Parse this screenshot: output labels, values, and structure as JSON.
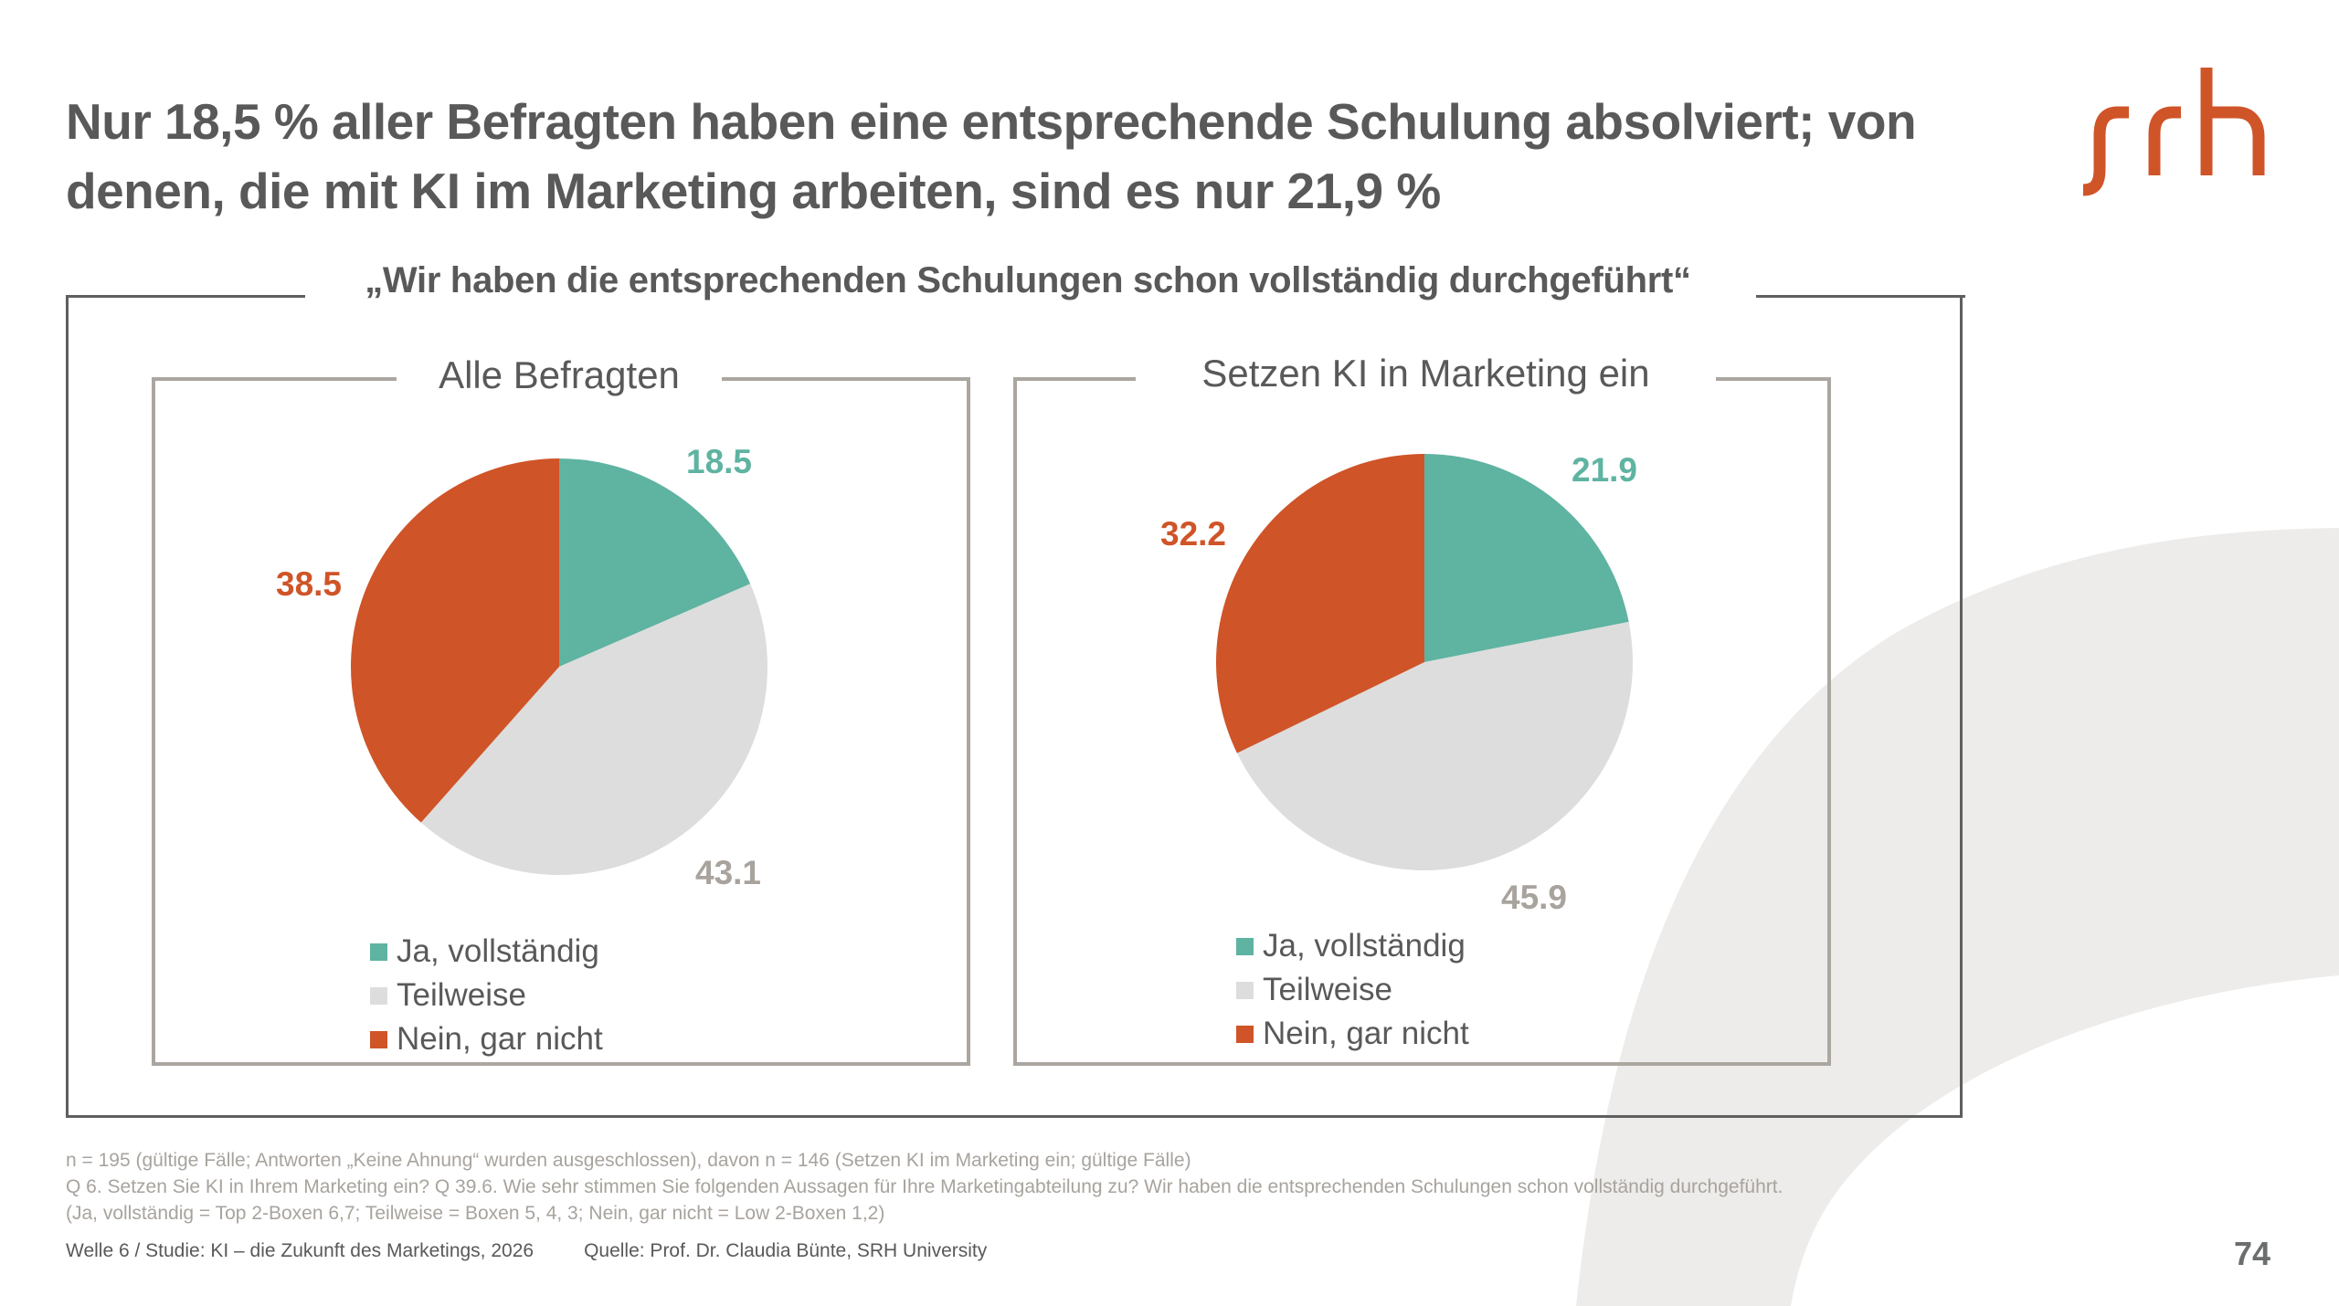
{
  "slide": {
    "title_lines": [
      "Nur 18,5 % aller Befragten haben eine entsprechende Schulung absolviert; von",
      "denen, die mit KI im Marketing arbeiten, sind es nur 21,9 %"
    ],
    "logo_text": "srh",
    "question_quote": "„Wir haben die entsprechenden Schulungen schon vollständig durchgeführt“",
    "footnotes": [
      "n = 195 (gültige Fälle; Antworten „Keine Ahnung“ wurden ausgeschlossen), davon n = 146 (Setzen KI im Marketing ein; gültige Fälle)",
      "Q 6. Setzen Sie KI in Ihrem Marketing ein? Q 39.6. Wie sehr stimmen Sie folgenden Aussagen für Ihre Marketingabteilung zu? Wir haben die entsprechenden Schulungen schon vollständig durchgeführt.",
      "(Ja, vollständig = Top 2-Boxen 6,7; Teilweise = Boxen 5, 4, 3; Nein, gar nicht = Low 2-Boxen 1,2)"
    ],
    "footer_study": "Welle 6 / Studie: KI – die Zukunft des Marketings, 2026",
    "footer_source": "Quelle: Prof. Dr. Claudia Bünte, SRH University",
    "page_number": "74"
  },
  "colors": {
    "ja": "#5fb3a1",
    "teilweise": "#dddddd",
    "nein": "#cf5428",
    "ja_label": "#5fb3a1",
    "teilweise_label": "#a8a39d",
    "nein_label": "#cf5428",
    "logo": "#cf5428"
  },
  "chart_data": [
    {
      "type": "pie",
      "title": "Alle Befragten",
      "categories": [
        "Ja, vollständig",
        "Teilweise",
        "Nein, gar nicht"
      ],
      "values": [
        18.5,
        43.1,
        38.5
      ],
      "value_labels": [
        "18.5",
        "43.1",
        "38.5"
      ],
      "unit": "%",
      "start_angle": "12 o'clock, clockwise",
      "legend": [
        "Ja, vollständig",
        "Teilweise",
        "Nein, gar nicht"
      ],
      "legend_position": "bottom"
    },
    {
      "type": "pie",
      "title": "Setzen KI in Marketing ein",
      "categories": [
        "Ja, vollständig",
        "Teilweise",
        "Nein, gar nicht"
      ],
      "values": [
        21.9,
        45.9,
        32.2
      ],
      "value_labels": [
        "21.9",
        "45.9",
        "32.2"
      ],
      "unit": "%",
      "start_angle": "12 o'clock, clockwise",
      "legend": [
        "Ja, vollständig",
        "Teilweise",
        "Nein, gar nicht"
      ],
      "legend_position": "bottom"
    }
  ]
}
